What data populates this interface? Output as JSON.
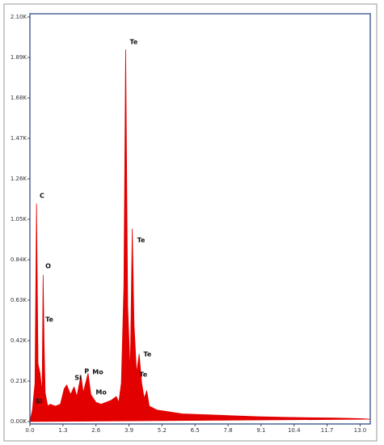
{
  "chart_data": {
    "type": "area",
    "color": "#e30000",
    "xlim": [
      0,
      13.4
    ],
    "ylim": [
      0,
      2100
    ],
    "xticks": [
      {
        "value": 0,
        "label": "0.0"
      },
      1.3,
      2.6,
      3.9,
      5.2,
      6.5,
      7.8,
      9.1,
      10.4,
      11.7,
      {
        "value": 13,
        "label": "13.0"
      }
    ],
    "yticks": [
      {
        "value": 0,
        "label": "0.00K"
      },
      {
        "value": 210,
        "label": "0.21K"
      },
      {
        "value": 420,
        "label": "0.42K"
      },
      {
        "value": 630,
        "label": "0.63K"
      },
      {
        "value": 840,
        "label": "0.84K"
      },
      {
        "value": 1050,
        "label": "1.05K"
      },
      {
        "value": 1260,
        "label": "1.26K"
      },
      {
        "value": 1470,
        "label": "1.47K"
      },
      {
        "value": 1680,
        "label": "1.68K"
      },
      {
        "value": 1890,
        "label": "1.89K"
      },
      {
        "value": 2100,
        "label": "2.10K"
      }
    ],
    "x": [
      0,
      0.1,
      0.2,
      0.26,
      0.32,
      0.4,
      0.48,
      0.52,
      0.56,
      0.6,
      0.7,
      0.8,
      1.0,
      1.2,
      1.35,
      1.45,
      1.6,
      1.74,
      1.85,
      2.01,
      2.1,
      2.29,
      2.4,
      2.6,
      2.8,
      3.0,
      3.2,
      3.4,
      3.5,
      3.6,
      3.7,
      3.77,
      3.85,
      3.95,
      4.03,
      4.1,
      4.2,
      4.3,
      4.4,
      4.5,
      4.6,
      4.7,
      5.0,
      5.5,
      6.0,
      7.0,
      8.0,
      9.0,
      10.0,
      11.0,
      12.0,
      13.0,
      13.4
    ],
    "values": [
      0,
      60,
      200,
      1130,
      300,
      250,
      150,
      760,
      400,
      150,
      80,
      90,
      80,
      90,
      170,
      190,
      140,
      180,
      130,
      240,
      150,
      250,
      140,
      100,
      90,
      100,
      110,
      130,
      100,
      200,
      700,
      1930,
      600,
      250,
      1000,
      500,
      250,
      350,
      200,
      120,
      160,
      80,
      60,
      50,
      40,
      35,
      30,
      25,
      22,
      20,
      18,
      15,
      12
    ],
    "annotations": [
      {
        "text": "C",
        "x": 0.38,
        "y": 1172
      },
      {
        "text": "O",
        "x": 0.61,
        "y": 807
      },
      {
        "text": "Te",
        "x": 0.61,
        "y": 529
      },
      {
        "text": "Si",
        "x": 0.22,
        "y": 105
      },
      {
        "text": "Si",
        "x": 1.76,
        "y": 227
      },
      {
        "text": "P",
        "x": 2.14,
        "y": 260
      },
      {
        "text": "Mo",
        "x": 2.46,
        "y": 256
      },
      {
        "text": "Mo",
        "x": 2.59,
        "y": 151
      },
      {
        "text": "Te",
        "x": 3.93,
        "y": 1970
      },
      {
        "text": "Te",
        "x": 4.22,
        "y": 941
      },
      {
        "text": "Te",
        "x": 4.47,
        "y": 349
      },
      {
        "text": "Te",
        "x": 4.31,
        "y": 244
      }
    ]
  }
}
